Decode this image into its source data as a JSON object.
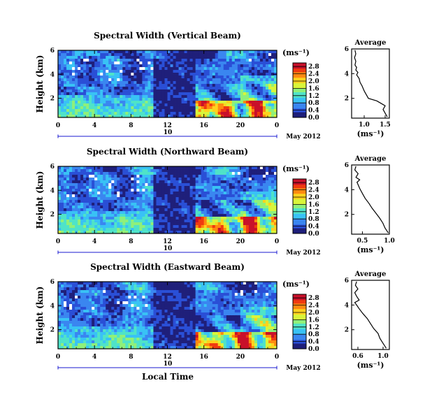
{
  "chart_data": [
    {
      "type": "heatmap",
      "title": "Spectral Width (Vertical Beam)",
      "ylabel": "Height (km)",
      "x_ticks": [
        "0",
        "4",
        "8",
        "12",
        "16",
        "20",
        "0"
      ],
      "xlim": [
        0,
        24
      ],
      "y_ticks": [
        "2",
        "4",
        "6"
      ],
      "ylim": [
        0.4,
        6
      ],
      "day_label": "10",
      "date_label": "May 2012",
      "colorbar": {
        "unit": "(ms⁻¹)",
        "ticks": [
          "0.0",
          "0.4",
          "0.8",
          "1.2",
          "1.6",
          "2.0",
          "2.4",
          "2.8"
        ],
        "range": [
          0,
          3
        ]
      },
      "average": {
        "title": "Average",
        "xlabel": "(ms⁻¹)",
        "x_ticks": [
          "1.0",
          "1.5"
        ],
        "xlim": [
          0.7,
          1.6
        ],
        "y_ticks": [
          "2",
          "4",
          "6"
        ],
        "ylim": [
          0.4,
          6
        ],
        "profile": [
          [
            1.55,
            0.5
          ],
          [
            1.5,
            0.8
          ],
          [
            1.45,
            1.1
          ],
          [
            1.5,
            1.4
          ],
          [
            1.4,
            1.6
          ],
          [
            1.3,
            1.8
          ],
          [
            1.1,
            2.0
          ],
          [
            1.05,
            2.3
          ],
          [
            1.0,
            2.6
          ],
          [
            0.95,
            3.0
          ],
          [
            0.9,
            3.3
          ],
          [
            0.88,
            3.6
          ],
          [
            0.82,
            3.9
          ],
          [
            0.85,
            4.1
          ],
          [
            0.8,
            4.3
          ],
          [
            0.82,
            4.5
          ],
          [
            0.78,
            4.7
          ],
          [
            0.8,
            5.0
          ],
          [
            0.77,
            5.3
          ],
          [
            0.8,
            5.6
          ],
          [
            0.78,
            5.9
          ]
        ]
      }
    },
    {
      "type": "heatmap",
      "title": "Spectral Width (Northward Beam)",
      "ylabel": "Height (km)",
      "x_ticks": [
        "0",
        "4",
        "8",
        "12",
        "16",
        "20",
        "0"
      ],
      "xlim": [
        0,
        24
      ],
      "y_ticks": [
        "2",
        "4",
        "6"
      ],
      "ylim": [
        0.4,
        6
      ],
      "day_label": "10",
      "date_label": "May 2012",
      "colorbar": {
        "unit": "(ms⁻¹)",
        "ticks": [
          "0.0",
          "0.4",
          "0.8",
          "1.2",
          "1.6",
          "2.0",
          "2.4",
          "2.8"
        ],
        "range": [
          0,
          3
        ]
      },
      "average": {
        "title": "Average",
        "xlabel": "(ms⁻¹)",
        "x_ticks": [
          "0.5",
          "1.0"
        ],
        "xlim": [
          0.3,
          1.0
        ],
        "y_ticks": [
          "2",
          "4",
          "6"
        ],
        "ylim": [
          0.4,
          6
        ],
        "profile": [
          [
            0.98,
            0.5
          ],
          [
            0.92,
            0.9
          ],
          [
            0.88,
            1.3
          ],
          [
            0.82,
            1.7
          ],
          [
            0.75,
            2.1
          ],
          [
            0.68,
            2.5
          ],
          [
            0.62,
            2.9
          ],
          [
            0.55,
            3.3
          ],
          [
            0.5,
            3.7
          ],
          [
            0.45,
            4.1
          ],
          [
            0.42,
            4.4
          ],
          [
            0.4,
            4.6
          ],
          [
            0.45,
            4.8
          ],
          [
            0.38,
            5.0
          ],
          [
            0.42,
            5.3
          ],
          [
            0.36,
            5.6
          ],
          [
            0.38,
            5.9
          ]
        ]
      }
    },
    {
      "type": "heatmap",
      "title": "Spectral Width (Eastward Beam)",
      "ylabel": "Height (km)",
      "x_ticks": [
        "0",
        "4",
        "8",
        "12",
        "16",
        "20",
        "0"
      ],
      "xlim": [
        0,
        24
      ],
      "y_ticks": [
        "2",
        "4",
        "6"
      ],
      "ylim": [
        0.4,
        6
      ],
      "day_label": "10",
      "date_label": "May 2012",
      "xlabel": "Local Time",
      "colorbar": {
        "unit": "(ms⁻¹)",
        "ticks": [
          "0.0",
          "0.4",
          "0.8",
          "1.2",
          "1.6",
          "2.0",
          "2.4",
          "2.8"
        ],
        "range": [
          0,
          3
        ]
      },
      "average": {
        "title": "Average",
        "xlabel": "(ms⁻¹)",
        "x_ticks": [
          "0.6",
          "1.0"
        ],
        "xlim": [
          0.5,
          1.1
        ],
        "y_ticks": [
          "2",
          "4",
          "6"
        ],
        "ylim": [
          0.4,
          6
        ],
        "profile": [
          [
            1.05,
            0.5
          ],
          [
            1.0,
            0.9
          ],
          [
            0.95,
            1.3
          ],
          [
            0.92,
            1.7
          ],
          [
            0.85,
            2.1
          ],
          [
            0.8,
            2.5
          ],
          [
            0.75,
            2.9
          ],
          [
            0.68,
            3.3
          ],
          [
            0.62,
            3.7
          ],
          [
            0.58,
            4.0
          ],
          [
            0.55,
            4.2
          ],
          [
            0.62,
            4.4
          ],
          [
            0.58,
            4.7
          ],
          [
            0.55,
            5.0
          ],
          [
            0.6,
            5.3
          ],
          [
            0.56,
            5.6
          ],
          [
            0.58,
            5.9
          ]
        ]
      }
    }
  ],
  "colors": {
    "colormap": [
      "#1f1f7a",
      "#2a4fd6",
      "#3a86f0",
      "#39c2f5",
      "#4fe3c8",
      "#8ff07a",
      "#d9f53a",
      "#ffd21e",
      "#ff8a10",
      "#f03a10",
      "#c8102a"
    ],
    "axis": "#000000",
    "profile_line": "#000000",
    "time_bar": "#1a1ad0"
  }
}
